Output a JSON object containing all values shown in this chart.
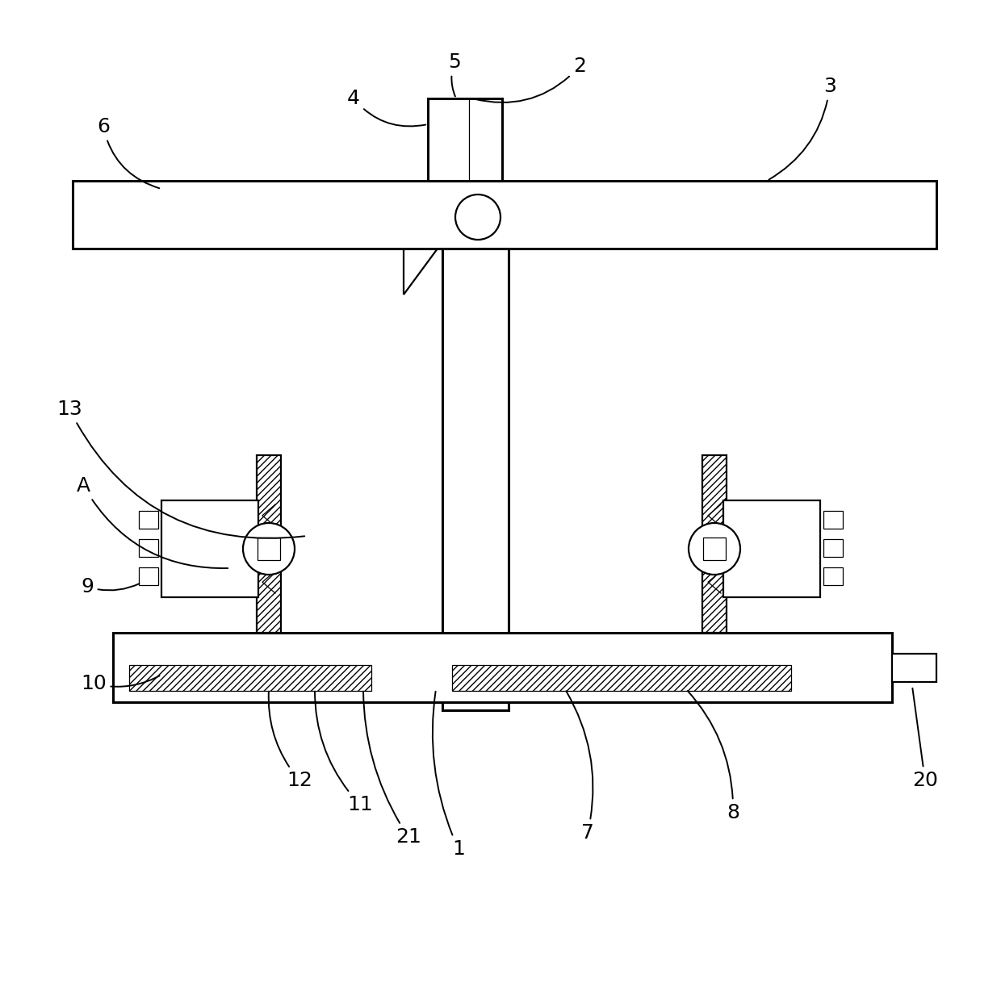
{
  "bg_color": "#ffffff",
  "line_color": "#000000",
  "fig_width": 12.4,
  "fig_height": 12.44,
  "lw_main": 1.6,
  "lw_thick": 2.2,
  "lw_thin": 0.9,
  "label_fontsize": 18
}
